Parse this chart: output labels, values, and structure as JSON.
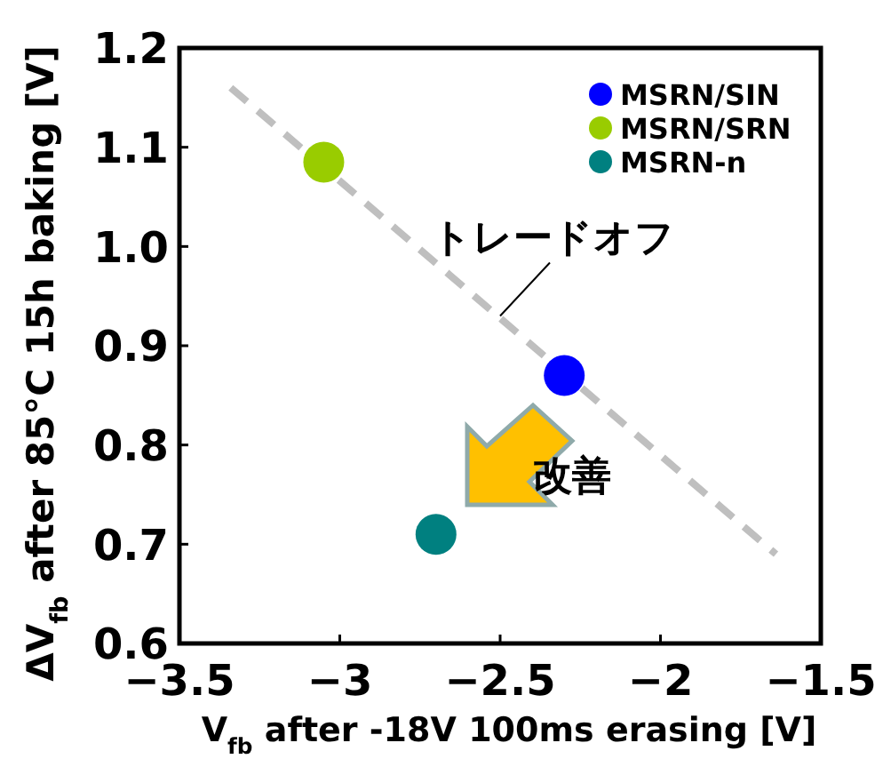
{
  "chart_data": {
    "type": "scatter",
    "xlabel": "V$_{fb}$ after -18V 100ms erasing [V]",
    "ylabel": "ΔV$_{fb}$ after 85°C 15h baking [V]",
    "xlim": [
      -3.5,
      -1.5
    ],
    "xticks": [
      -3.5,
      -3,
      -2.5,
      -2,
      -1.5
    ],
    "ylim": [
      0.6,
      1.2
    ],
    "yticks": [
      0.6,
      0.7,
      0.8,
      0.9,
      {
        "value": 1.0,
        "label": "1.0"
      },
      1.1,
      1.2
    ],
    "grid": false,
    "legend": "top right",
    "marker": "circle",
    "series": [
      {
        "name": "MSRN/SIN",
        "color": "#0000ff",
        "x": [
          -2.3
        ],
        "values": [
          0.87
        ]
      },
      {
        "name": "MSRN/SRN",
        "color": "#99cc00",
        "x": [
          -3.05
        ],
        "values": [
          1.085
        ]
      },
      {
        "name": "MSRN-n",
        "color": "#008080",
        "x": [
          -2.7
        ],
        "values": [
          0.71
        ]
      },
      {
        "type": "line",
        "color": "#bfbfbf",
        "line_style": "dashed",
        "marker": "none",
        "x": [
          -3.34,
          -1.64
        ],
        "values": [
          1.16,
          0.69
        ]
      }
    ],
    "annotations": [
      {
        "text": "トレードオフ",
        "x": -2.5,
        "y": 0.93
      },
      "改善"
    ]
  }
}
